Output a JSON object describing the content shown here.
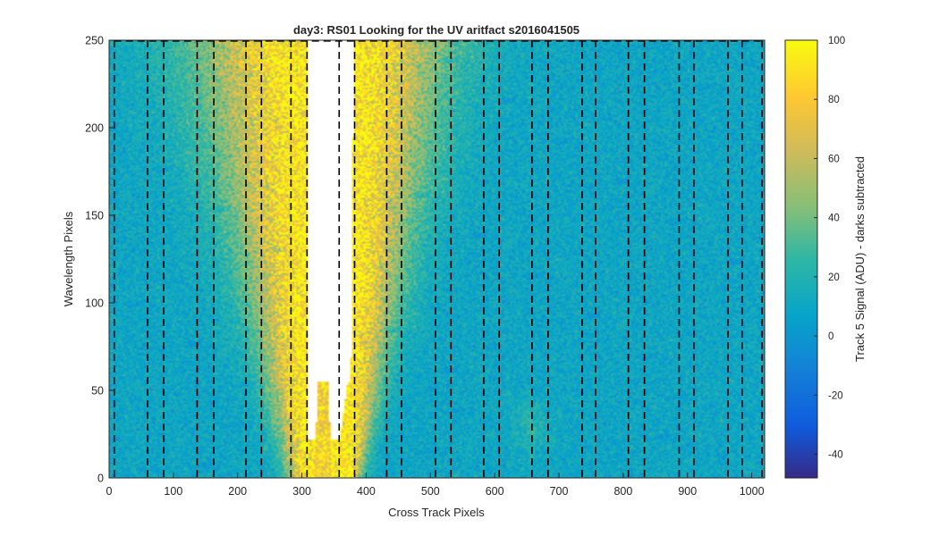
{
  "chart_data": {
    "type": "heatmap",
    "title": "day3: RS01  Looking for the UV aritfact  s2016041505",
    "xlabel": "Cross Track Pixels",
    "ylabel": "Wavelength Pixels",
    "xlim": [
      0,
      1020
    ],
    "ylim": [
      0,
      250
    ],
    "xticks": [
      0,
      100,
      200,
      300,
      400,
      500,
      600,
      700,
      800,
      900,
      1000
    ],
    "yticks": [
      0,
      50,
      100,
      150,
      200,
      250
    ],
    "colorbar": {
      "label": "Track 5 Signal (ADU) - darks subtracted",
      "range": [
        -48,
        100
      ],
      "ticks": [
        100,
        80,
        60,
        40,
        20,
        0,
        -20,
        -40
      ],
      "colormap": "parula"
    },
    "background_signal_adu": 10,
    "saturated_region": {
      "description": "white (above color range)",
      "x_start": 310,
      "x_end": 372,
      "y_bottom_left_notch": 22,
      "y_top": 250,
      "central_bump_top": 55,
      "central_bump_x": 333
    },
    "dashed_lines_x": [
      8,
      60,
      85,
      137,
      163,
      213,
      237,
      283,
      308,
      358,
      382,
      432,
      455,
      508,
      532,
      583,
      607,
      658,
      683,
      736,
      757,
      808,
      833,
      887,
      910,
      963,
      985,
      1016
    ],
    "dashed_box_top_y": 250,
    "colors": {
      "background": "#1aa6b8",
      "bright": "#f0c33c",
      "saturated": "#ffffff",
      "guide_lines": "#000000"
    }
  }
}
